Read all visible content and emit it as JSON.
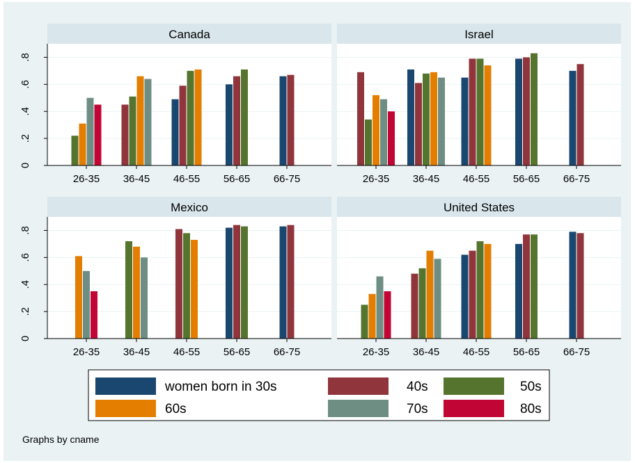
{
  "chart_data": {
    "type": "bar",
    "categories": [
      "26-35",
      "36-45",
      "46-55",
      "56-65",
      "66-75"
    ],
    "yticks": [
      {
        "value": 0,
        "label": "0"
      },
      {
        "value": 0.2,
        "label": ".2"
      },
      {
        "value": 0.4,
        "label": ".4"
      },
      {
        "value": 0.6,
        "label": ".6"
      },
      {
        "value": 0.8,
        "label": ".8"
      }
    ],
    "ylim": [
      0,
      0.9
    ],
    "grid": true,
    "legend_position": "bottom",
    "series_colors": {
      "women born in 30s": "#1a476f",
      "40s": "#90353b",
      "50s": "#55752f",
      "60s": "#e37e00",
      "70s": "#6e8e84",
      "80s": "#c10534"
    },
    "panels": [
      {
        "title": "Canada",
        "series": [
          {
            "name": "women born in 30s",
            "values": [
              null,
              null,
              0.49,
              0.6,
              0.66
            ]
          },
          {
            "name": "40s",
            "values": [
              null,
              0.45,
              0.59,
              0.66,
              0.67
            ]
          },
          {
            "name": "50s",
            "values": [
              0.22,
              0.51,
              0.7,
              0.71,
              null
            ]
          },
          {
            "name": "60s",
            "values": [
              0.31,
              0.66,
              0.71,
              null,
              null
            ]
          },
          {
            "name": "70s",
            "values": [
              0.5,
              0.64,
              null,
              null,
              null
            ]
          },
          {
            "name": "80s",
            "values": [
              0.45,
              null,
              null,
              null,
              null
            ]
          }
        ]
      },
      {
        "title": "Israel",
        "series": [
          {
            "name": "women born in 30s",
            "values": [
              null,
              0.71,
              0.65,
              0.79,
              0.7
            ]
          },
          {
            "name": "40s",
            "values": [
              0.69,
              0.61,
              0.79,
              0.8,
              0.75
            ]
          },
          {
            "name": "50s",
            "values": [
              0.34,
              0.68,
              0.79,
              0.83,
              null
            ]
          },
          {
            "name": "60s",
            "values": [
              0.52,
              0.69,
              0.74,
              null,
              null
            ]
          },
          {
            "name": "70s",
            "values": [
              0.49,
              0.65,
              null,
              null,
              null
            ]
          },
          {
            "name": "80s",
            "values": [
              0.4,
              null,
              null,
              null,
              null
            ]
          }
        ]
      },
      {
        "title": "Mexico",
        "series": [
          {
            "name": "women born in 30s",
            "values": [
              null,
              null,
              null,
              0.82,
              0.83
            ]
          },
          {
            "name": "40s",
            "values": [
              null,
              null,
              0.81,
              0.84,
              0.84
            ]
          },
          {
            "name": "50s",
            "values": [
              null,
              0.72,
              0.78,
              0.83,
              null
            ]
          },
          {
            "name": "60s",
            "values": [
              0.61,
              0.68,
              0.73,
              null,
              null
            ]
          },
          {
            "name": "70s",
            "values": [
              0.5,
              0.6,
              null,
              null,
              null
            ]
          },
          {
            "name": "80s",
            "values": [
              0.35,
              null,
              null,
              null,
              null
            ]
          }
        ]
      },
      {
        "title": "United States",
        "series": [
          {
            "name": "women born in 30s",
            "values": [
              null,
              null,
              0.62,
              0.7,
              0.79
            ]
          },
          {
            "name": "40s",
            "values": [
              null,
              0.48,
              0.65,
              0.77,
              0.78
            ]
          },
          {
            "name": "50s",
            "values": [
              0.25,
              0.52,
              0.72,
              0.77,
              null
            ]
          },
          {
            "name": "60s",
            "values": [
              0.33,
              0.65,
              0.7,
              null,
              null
            ]
          },
          {
            "name": "70s",
            "values": [
              0.46,
              0.59,
              null,
              null,
              null
            ]
          },
          {
            "name": "80s",
            "values": [
              0.35,
              null,
              null,
              null,
              null
            ]
          }
        ]
      }
    ],
    "legend": [
      "women born in 30s",
      "40s",
      "50s",
      "60s",
      "70s",
      "80s"
    ],
    "note": "Graphs by cname"
  }
}
